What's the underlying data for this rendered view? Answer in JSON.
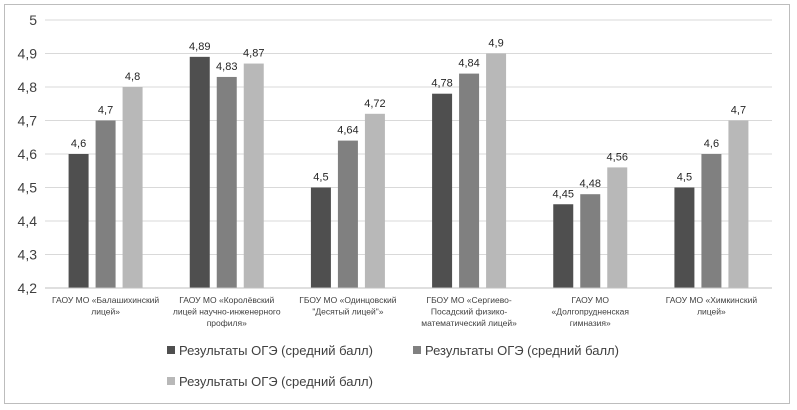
{
  "chart_data": {
    "type": "bar",
    "categories": [
      [
        "ГАОУ МО «Балашихинский",
        "лицей»"
      ],
      [
        "ГАОУ МО «Королёвский",
        "лицей научно-инженерного",
        "профиля»"
      ],
      [
        "ГБОУ МО «Одинцовский",
        "\"Десятый лицей\"»"
      ],
      [
        "ГБОУ МО «Сергиево-",
        "Посадский физико-",
        "математический лицей»"
      ],
      [
        "ГАОУ МО",
        "«Долгопрудненская",
        "гимназия»"
      ],
      [
        "ГАОУ МО «Химкинский",
        "лицей»"
      ]
    ],
    "series": [
      {
        "name": "Результаты ОГЭ (средний балл)",
        "color": "#4f4f4f",
        "values": [
          4.6,
          4.89,
          4.5,
          4.78,
          4.45,
          4.5
        ]
      },
      {
        "name": "Результаты ОГЭ (средний балл)",
        "color": "#808080",
        "values": [
          4.7,
          4.83,
          4.64,
          4.84,
          4.48,
          4.6
        ]
      },
      {
        "name": "Результаты ОГЭ (средний балл)",
        "color": "#b8b8b8",
        "values": [
          4.8,
          4.87,
          4.72,
          4.9,
          4.56,
          4.7
        ]
      }
    ],
    "data_labels": [
      [
        "4,6",
        "4,89",
        "4,5",
        "4,78",
        "4,45",
        "4,5"
      ],
      [
        "4,7",
        "4,83",
        "4,64",
        "4,84",
        "4,48",
        "4,6"
      ],
      [
        "4,8",
        "4,87",
        "4,72",
        "4,9",
        "4,56",
        "4,7"
      ]
    ],
    "y_ticks": [
      {
        "value": 4.2,
        "label": "4,2"
      },
      {
        "value": 4.3,
        "label": "4,3"
      },
      {
        "value": 4.4,
        "label": "4,4"
      },
      {
        "value": 4.5,
        "label": "4,5"
      },
      {
        "value": 4.6,
        "label": "4,6"
      },
      {
        "value": 4.7,
        "label": "4,7"
      },
      {
        "value": 4.8,
        "label": "4,8"
      },
      {
        "value": 4.9,
        "label": "4,9"
      },
      {
        "value": 5,
        "label": "5"
      }
    ],
    "ylim": [
      4.2,
      5
    ],
    "grid": true,
    "legend_position": "bottom",
    "title": "",
    "xlabel": "",
    "ylabel": ""
  }
}
